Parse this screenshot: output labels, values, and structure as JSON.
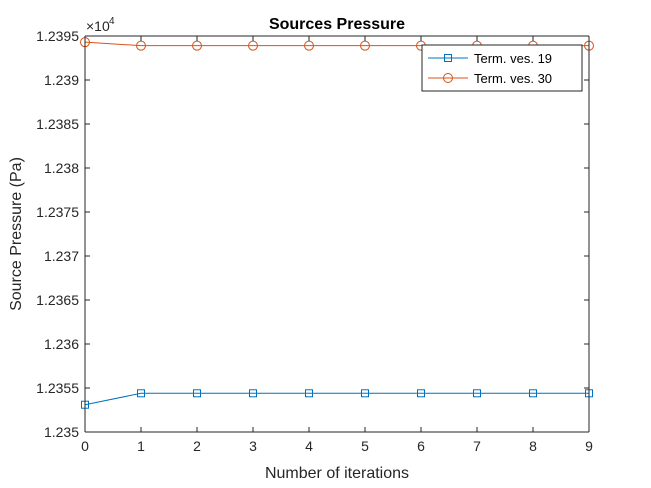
{
  "chart_data": {
    "type": "line",
    "title": "Sources Pressure",
    "xlabel": "Number of iterations",
    "ylabel": "Source Pressure (Pa)",
    "exponent_base": "×10",
    "exponent_power": "4",
    "xlim": [
      0,
      9
    ],
    "ylim": [
      1.235,
      1.2395
    ],
    "x_ticks": [
      "0",
      "1",
      "2",
      "3",
      "4",
      "5",
      "6",
      "7",
      "8",
      "9"
    ],
    "y_ticks": [
      "1.235",
      "1.2355",
      "1.236",
      "1.2365",
      "1.237",
      "1.2375",
      "1.238",
      "1.2385",
      "1.239",
      "1.2395"
    ],
    "grid": false,
    "legend_position": "top-right",
    "x": [
      0,
      1,
      2,
      3,
      4,
      5,
      6,
      7,
      8,
      9
    ],
    "series": [
      {
        "name": "Term. ves. 19",
        "marker": "square",
        "color": "#0072BD",
        "values": [
          1.23531,
          1.23544,
          1.23544,
          1.23544,
          1.23544,
          1.23544,
          1.23544,
          1.23544,
          1.23544,
          1.23544
        ]
      },
      {
        "name": "Term. ves. 30",
        "marker": "circle",
        "color": "#D95319",
        "values": [
          1.23943,
          1.23939,
          1.23939,
          1.23939,
          1.23939,
          1.23939,
          1.23939,
          1.23939,
          1.23939,
          1.23939
        ]
      }
    ]
  }
}
